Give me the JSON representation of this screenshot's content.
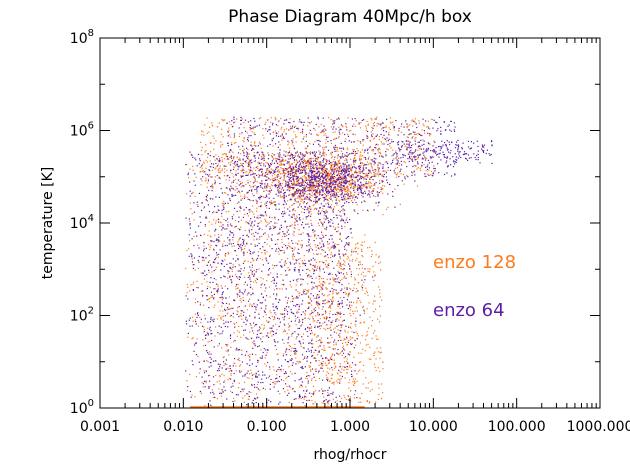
{
  "chart_data": {
    "type": "scatter",
    "title": "Phase Diagram 40Mpc/h box",
    "xlabel": "rhog/rhocr",
    "ylabel": "temperature [K]",
    "xscale": "log",
    "yscale": "log",
    "xlim": [
      0.001,
      1000
    ],
    "ylim": [
      1,
      100000000
    ],
    "x_ticks": [
      "0.001",
      "0.010",
      "0.100",
      "1.000",
      "10.000",
      "100.000",
      "1000.000"
    ],
    "y_ticks": [
      {
        "base": "10",
        "exp": "0"
      },
      {
        "base": "10",
        "exp": "2"
      },
      {
        "base": "10",
        "exp": "4"
      },
      {
        "base": "10",
        "exp": "6"
      },
      {
        "base": "10",
        "exp": "8"
      }
    ],
    "grid": false,
    "series": [
      {
        "name": "enzo 128",
        "color": "#ff7a1a",
        "points": 3200
      },
      {
        "name": "enzo 64",
        "color": "#5a1fa6",
        "points": 3200
      }
    ],
    "legend": {
      "placement": "inside-right"
    },
    "dense_core": {
      "x": 0.5,
      "y": 80000
    }
  }
}
